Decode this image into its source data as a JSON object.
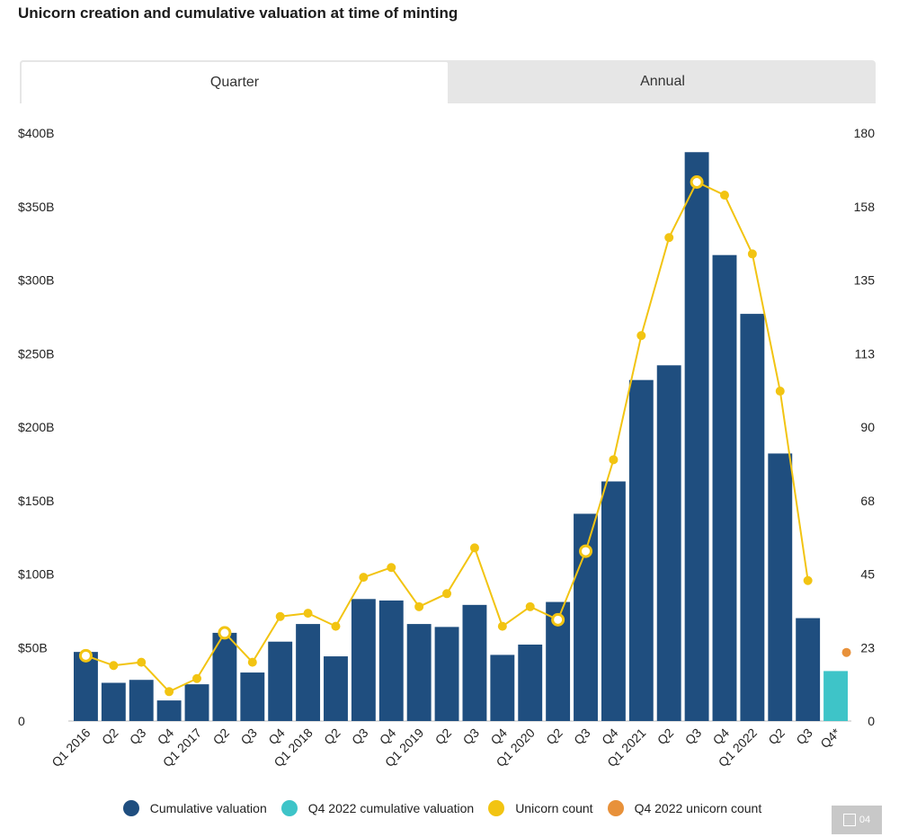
{
  "title": "Unicorn creation and cumulative valuation at time of minting",
  "tabs": [
    {
      "label": "Quarter",
      "active": true
    },
    {
      "label": "Annual",
      "active": false
    }
  ],
  "legend": [
    {
      "label": "Cumulative valuation",
      "color": "#1f4e7f"
    },
    {
      "label": "Q4 2022 cumulative valuation",
      "color": "#3ec4c8"
    },
    {
      "label": "Unicorn count",
      "color": "#f2c412"
    },
    {
      "label": "Q4 2022 unicorn count",
      "color": "#e8913a"
    }
  ],
  "badge": {
    "icon": "chart-export-icon",
    "label": "04"
  },
  "chart_data": {
    "type": "bar",
    "categories": [
      "Q1 2016",
      "Q2",
      "Q3",
      "Q4",
      "Q1 2017",
      "Q2",
      "Q3",
      "Q4",
      "Q1 2018",
      "Q2",
      "Q3",
      "Q4",
      "Q1 2019",
      "Q2",
      "Q3",
      "Q4",
      "Q1 2020",
      "Q2",
      "Q3",
      "Q4",
      "Q1 2021",
      "Q2",
      "Q3",
      "Q4",
      "Q1 2022",
      "Q2",
      "Q3",
      "Q4*"
    ],
    "y_left": {
      "ticks": [
        "0",
        "$50B",
        "$100B",
        "$150B",
        "$200B",
        "$250B",
        "$300B",
        "$350B",
        "$400B"
      ],
      "range": [
        0,
        400
      ],
      "unit": "$B"
    },
    "y_right": {
      "ticks": [
        "0",
        "23",
        "45",
        "68",
        "90",
        "113",
        "135",
        "158",
        "180"
      ],
      "range": [
        0,
        180
      ]
    },
    "series": [
      {
        "name": "Cumulative valuation",
        "axis": "left",
        "color": "#1f4e7f",
        "values": [
          47,
          26,
          28,
          14,
          25,
          60,
          33,
          54,
          66,
          44,
          83,
          82,
          66,
          64,
          79,
          45,
          52,
          81,
          141,
          163,
          232,
          242,
          387,
          317,
          277,
          182,
          70,
          null
        ]
      },
      {
        "name": "Q4 2022 cumulative valuation",
        "axis": "left",
        "color": "#3ec4c8",
        "values": [
          null,
          null,
          null,
          null,
          null,
          null,
          null,
          null,
          null,
          null,
          null,
          null,
          null,
          null,
          null,
          null,
          null,
          null,
          null,
          null,
          null,
          null,
          null,
          null,
          null,
          null,
          null,
          34
        ]
      },
      {
        "name": "Unicorn count",
        "axis": "right",
        "color": "#f2c412",
        "values": [
          20,
          17,
          18,
          9,
          13,
          27,
          18,
          32,
          33,
          29,
          44,
          47,
          35,
          39,
          53,
          29,
          35,
          31,
          52,
          80,
          118,
          148,
          165,
          161,
          143,
          101,
          43,
          null
        ]
      },
      {
        "name": "Q4 2022 unicorn count",
        "axis": "right",
        "color": "#e8913a",
        "values": [
          null,
          null,
          null,
          null,
          null,
          null,
          null,
          null,
          null,
          null,
          null,
          null,
          null,
          null,
          null,
          null,
          null,
          null,
          null,
          null,
          null,
          null,
          null,
          null,
          null,
          null,
          null,
          21
        ]
      }
    ],
    "highlighted_points": [
      0,
      5,
      17,
      18,
      22
    ]
  }
}
